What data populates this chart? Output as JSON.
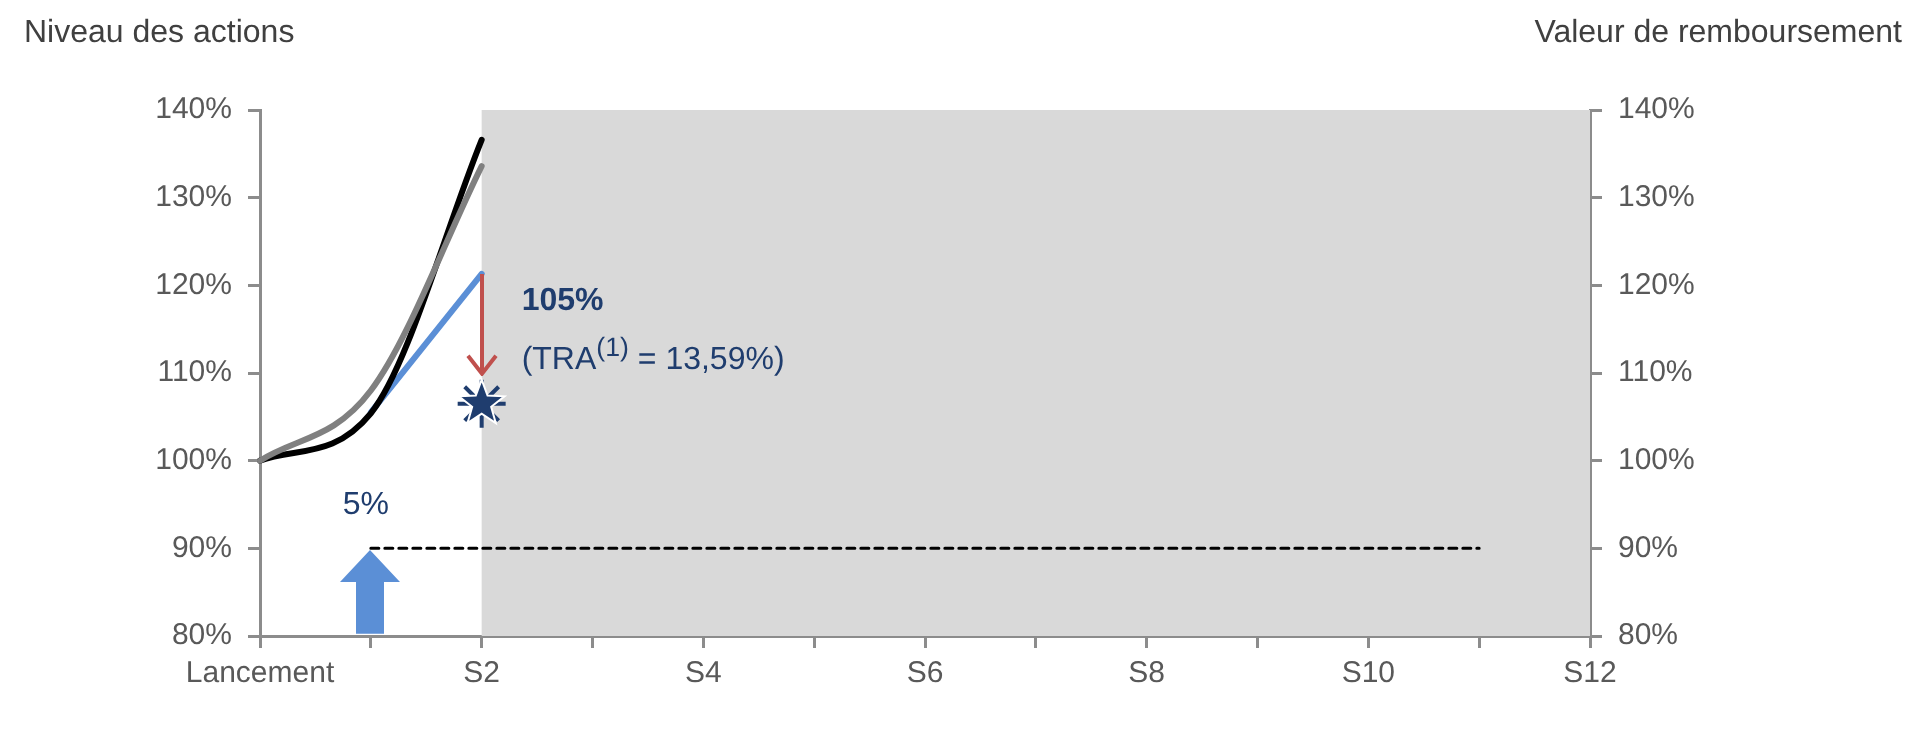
{
  "chart_data": {
    "type": "line",
    "categories": [
      "Lancement",
      null,
      "S2",
      null,
      "S4",
      null,
      "S6",
      null,
      "S8",
      null,
      "S10",
      null,
      "S12"
    ],
    "ylim": [
      80,
      140
    ],
    "yticks": [
      {
        "value": 80,
        "label": "80%"
      },
      {
        "value": 90,
        "label": "90%"
      },
      {
        "value": 100,
        "label": "100%"
      },
      {
        "value": 110,
        "label": "110%"
      },
      {
        "value": 120,
        "label": "120%"
      },
      {
        "value": 130,
        "label": "130%"
      },
      {
        "value": 140,
        "label": "140%"
      }
    ],
    "y2lim": [
      80,
      140
    ],
    "y2ticks": [
      {
        "value": 80,
        "label": "80%"
      },
      {
        "value": 90,
        "label": "90%"
      },
      {
        "value": 100,
        "label": "100%"
      },
      {
        "value": 110,
        "label": "110%"
      },
      {
        "value": 120,
        "label": "120%"
      },
      {
        "value": 130,
        "label": "130%"
      },
      {
        "value": 140,
        "label": "140%"
      }
    ],
    "grid": false,
    "legend": false,
    "marker": "none",
    "series": [
      {
        "color": "#808080",
        "values": [
          100,
          108,
          133.6,
          null,
          null,
          null,
          null,
          null,
          null,
          null,
          null,
          null,
          null
        ]
      },
      {
        "color": "#000000",
        "values": [
          100,
          105.4,
          136.6,
          null,
          null,
          null,
          null,
          null,
          null,
          null,
          null,
          null,
          null
        ]
      },
      {
        "color": "#5b8fd6",
        "values": [
          null,
          105.5,
          121.3,
          null,
          null,
          null,
          null,
          null,
          null,
          null,
          null,
          null,
          null
        ]
      },
      {
        "color": "#000000",
        "line_style": "dashed",
        "values": [
          null,
          90,
          90,
          90,
          90,
          90,
          90,
          90,
          90,
          90,
          90,
          90,
          null
        ]
      },
      {
        "type": "scatter",
        "marker": "star",
        "color": "#1f3d6e",
        "values": [
          null,
          null,
          106.5,
          null,
          null,
          null,
          null,
          null,
          null,
          null,
          null,
          null,
          null
        ]
      }
    ],
    "bands": [
      {
        "axis": "x",
        "from": "S2",
        "to": "S12",
        "color": "#d9d9d9"
      }
    ],
    "annotations": [
      "Niveau des actions",
      "Valeur de remboursement",
      {
        "text": "105%",
        "x": "S2",
        "y": 106.5
      },
      {
        "text": "(TRA$^{(1)}$ = 13,59%)",
        "x": "S2",
        "y": 106.5
      },
      "5%"
    ]
  }
}
